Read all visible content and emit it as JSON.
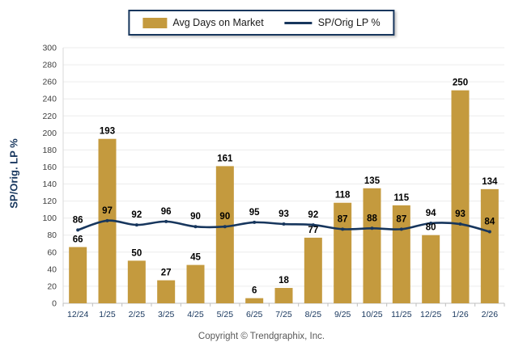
{
  "legend": {
    "items": [
      {
        "label": "Avg Days on Market",
        "swatch": "bar-swatch"
      },
      {
        "label": "SP/Orig LP %",
        "swatch": "line-swatch"
      }
    ]
  },
  "y_axis_title": "SP/Orig. LP %",
  "copyright": "Copyright © Trendgraphix, Inc.",
  "colors": {
    "bar": "#C49A3E",
    "line": "#17365D",
    "grid": "#ECECEC",
    "axis": "#BFBFBF",
    "value_label": "#000000",
    "x_tick_label": "#17365D",
    "y_tick_label": "#404040"
  },
  "chart_data": {
    "type": "bar",
    "categories": [
      "12/24",
      "1/25",
      "2/25",
      "3/25",
      "4/25",
      "5/25",
      "6/25",
      "7/25",
      "8/25",
      "9/25",
      "10/25",
      "11/25",
      "12/25",
      "1/26",
      "2/26"
    ],
    "series": [
      {
        "name": "Avg Days on Market",
        "type": "bar",
        "values": [
          66,
          193,
          50,
          27,
          45,
          161,
          6,
          18,
          77,
          118,
          135,
          115,
          80,
          250,
          134
        ]
      },
      {
        "name": "SP/Orig LP %",
        "type": "line",
        "values": [
          86,
          97,
          92,
          96,
          90,
          90,
          95,
          93,
          92,
          87,
          88,
          87,
          94,
          93,
          84
        ]
      }
    ],
    "title": "",
    "xlabel": "",
    "ylabel": "SP/Orig. LP %",
    "ylim": [
      0,
      300
    ],
    "ytick_step": 20,
    "grid": true,
    "legend_position": "top"
  }
}
